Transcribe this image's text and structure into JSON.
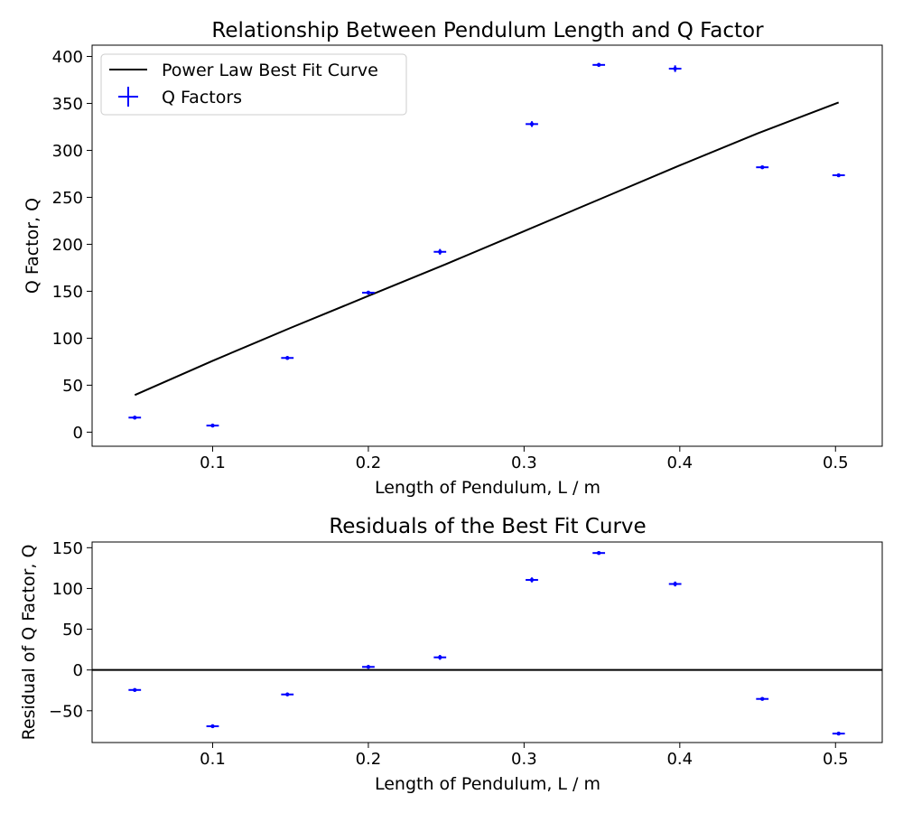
{
  "chart_data": [
    {
      "type": "scatter",
      "title": "Relationship Between Pendulum Length and Q Factor",
      "xlabel": "Length of Pendulum, L / m",
      "ylabel": "Q Factor, Q",
      "xlim": [
        0.0226,
        0.53
      ],
      "ylim": [
        -15,
        412
      ],
      "xticks": [
        0.1,
        0.2,
        0.3,
        0.4,
        0.5
      ],
      "xtick_labels": [
        "0.1",
        "0.2",
        "0.3",
        "0.4",
        "0.5"
      ],
      "yticks": [
        0,
        50,
        100,
        150,
        200,
        250,
        300,
        350,
        400
      ],
      "ytick_labels": [
        "0",
        "50",
        "100",
        "150",
        "200",
        "250",
        "300",
        "350",
        "400"
      ],
      "grid": false,
      "legend_position": "upper-left",
      "series": [
        {
          "name": "Power Law Best Fit Curve",
          "kind": "line",
          "color": "#000000",
          "x": [
            0.05,
            0.1,
            0.15,
            0.2,
            0.25,
            0.3,
            0.35,
            0.4,
            0.45,
            0.502
          ],
          "y": [
            39.5,
            76,
            111,
            145,
            179,
            214,
            249,
            284,
            318,
            351
          ]
        },
        {
          "name": "Q Factors",
          "kind": "errorbar",
          "color": "#0000ff",
          "x": [
            0.05,
            0.1,
            0.148,
            0.2,
            0.246,
            0.305,
            0.348,
            0.397,
            0.453,
            0.502
          ],
          "y": [
            15.5,
            7,
            79,
            148.5,
            192,
            328,
            391,
            387,
            282,
            273.5
          ],
          "xerr": [
            0.004,
            0.004,
            0.004,
            0.004,
            0.004,
            0.004,
            0.004,
            0.004,
            0.004,
            0.004
          ],
          "yerr": [
            1.5,
            1.5,
            1.5,
            1.5,
            3,
            3,
            2,
            3.5,
            1.5,
            1.5
          ]
        }
      ]
    },
    {
      "type": "scatter",
      "title": "Residuals of the Best Fit Curve",
      "xlabel": "Length of Pendulum, L / m",
      "ylabel": "Residual of Q Factor, Q",
      "xlim": [
        0.0226,
        0.53
      ],
      "ylim": [
        -89,
        157
      ],
      "xticks": [
        0.1,
        0.2,
        0.3,
        0.4,
        0.5
      ],
      "xtick_labels": [
        "0.1",
        "0.2",
        "0.3",
        "0.4",
        "0.5"
      ],
      "yticks": [
        -50,
        0,
        50,
        100,
        150
      ],
      "ytick_labels": [
        "−50",
        "0",
        "50",
        "100",
        "150"
      ],
      "grid": false,
      "reference_line_y": 0,
      "series": [
        {
          "kind": "errorbar",
          "color": "#0000ff",
          "x": [
            0.05,
            0.1,
            0.148,
            0.2,
            0.246,
            0.305,
            0.348,
            0.397,
            0.453,
            0.502
          ],
          "y": [
            -24.5,
            -69,
            -30,
            3.8,
            15.5,
            110.5,
            143.5,
            105.5,
            -35.5,
            -78
          ],
          "xerr": [
            0.004,
            0.004,
            0.004,
            0.004,
            0.004,
            0.004,
            0.004,
            0.004,
            0.004,
            0.004
          ],
          "yerr": [
            1.5,
            1.5,
            1.5,
            2,
            3,
            3,
            2,
            3,
            1.5,
            1.5
          ]
        }
      ]
    }
  ]
}
